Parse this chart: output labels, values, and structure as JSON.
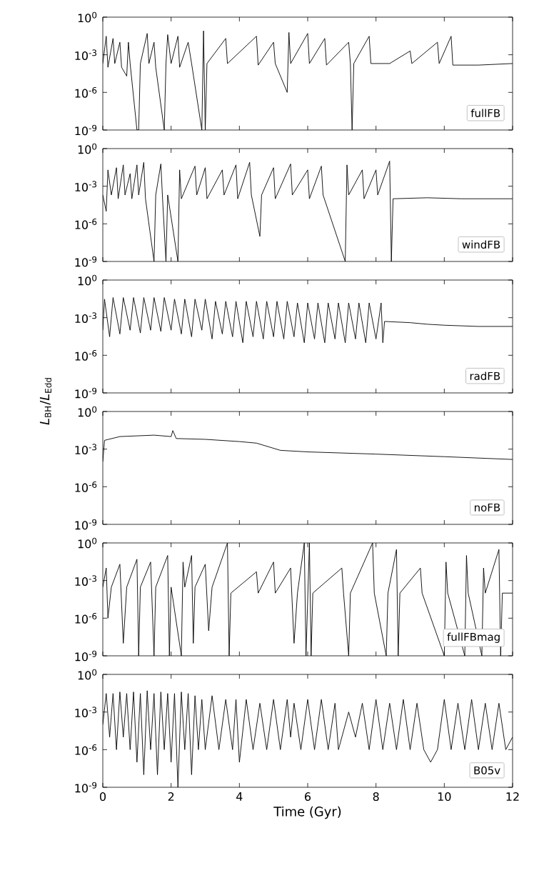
{
  "chart_data": [
    {
      "type": "line",
      "xlim": [
        0,
        12
      ],
      "xticks": [
        0,
        2,
        4,
        6,
        8,
        10,
        12
      ],
      "ylim": [
        1e-09,
        1
      ],
      "log": true,
      "tick_labels": "y",
      "yticks": [
        {
          "value": 1e-09,
          "label": "10$^{-9}$"
        },
        {
          "value": 1e-06,
          "label": "10$^{-6}$"
        },
        {
          "value": 0.001,
          "label": "10$^{-3}$"
        },
        {
          "value": 1,
          "label": "10$^{0}$"
        }
      ],
      "annotations": [
        "fullFB"
      ],
      "x": [
        0,
        0.1,
        0.15,
        0.3,
        0.35,
        0.5,
        0.55,
        0.7,
        0.75,
        0.8,
        1.0,
        1.05,
        1.1,
        1.3,
        1.35,
        1.5,
        1.55,
        1.8,
        1.85,
        1.9,
        2.0,
        2.2,
        2.25,
        2.5,
        2.6,
        2.9,
        2.95,
        3.0,
        3.05,
        3.6,
        3.65,
        4.5,
        4.55,
        5.0,
        5.05,
        5.4,
        5.45,
        5.5,
        6.0,
        6.05,
        6.5,
        6.55,
        7.2,
        7.25,
        7.3,
        7.35,
        7.8,
        7.85,
        8.4,
        9.0,
        9.05,
        9.8,
        9.85,
        10.2,
        10.25,
        11.0,
        12
      ],
      "series": [
        {
          "color": "#000000",
          "values": [
            0.0002,
            0.03,
            0.0001,
            0.02,
            0.0002,
            0.01,
            0.0001,
            2e-05,
            0.01,
            0.0002,
            1e-09,
            1e-09,
            0.0002,
            0.05,
            0.0002,
            0.01,
            0.0001,
            1e-09,
            0.0002,
            0.04,
            0.0002,
            0.03,
            0.0001,
            0.01,
            0.0002,
            1e-09,
            0.08,
            1e-09,
            0.0002,
            0.02,
            0.0002,
            0.03,
            0.00015,
            0.01,
            0.0002,
            1e-06,
            0.06,
            0.0002,
            0.05,
            0.0002,
            0.02,
            0.00015,
            0.01,
            0.0002,
            1e-09,
            0.0002,
            0.03,
            0.0002,
            0.0002,
            0.002,
            0.0002,
            0.01,
            0.0002,
            0.03,
            0.00015,
            0.00015,
            0.0002
          ]
        }
      ]
    },
    {
      "type": "line",
      "xlim": [
        0,
        12
      ],
      "xticks": [
        0,
        2,
        4,
        6,
        8,
        10,
        12
      ],
      "ylim": [
        1e-09,
        1
      ],
      "log": true,
      "tick_labels": "y",
      "yticks": [
        {
          "value": 1e-09,
          "label": "10$^{-9}$"
        },
        {
          "value": 1e-06,
          "label": "10$^{-6}$"
        },
        {
          "value": 0.001,
          "label": "10$^{-3}$"
        },
        {
          "value": 1,
          "label": "10$^{0}$"
        }
      ],
      "annotations": [
        "windFB"
      ],
      "x": [
        0,
        0.1,
        0.15,
        0.25,
        0.4,
        0.45,
        0.6,
        0.65,
        0.8,
        0.85,
        1.0,
        1.05,
        1.2,
        1.25,
        1.5,
        1.55,
        1.7,
        1.75,
        1.85,
        1.9,
        2.2,
        2.25,
        2.3,
        2.7,
        2.75,
        3.0,
        3.05,
        3.5,
        3.55,
        3.9,
        3.95,
        4.3,
        4.35,
        4.6,
        4.65,
        5.0,
        5.05,
        5.5,
        5.55,
        6.0,
        6.05,
        6.4,
        6.45,
        7.1,
        7.15,
        7.2,
        7.6,
        7.65,
        8.0,
        8.05,
        8.4,
        8.45,
        8.5,
        9.5,
        10.5,
        12
      ],
      "series": [
        {
          "color": "#000000",
          "values": [
            0.0002,
            1e-05,
            0.02,
            0.0002,
            0.03,
            0.0001,
            0.05,
            0.0002,
            0.01,
            0.0001,
            0.05,
            0.0002,
            0.08,
            0.0001,
            1e-09,
            0.0002,
            0.06,
            0.0001,
            1e-09,
            0.0002,
            1e-09,
            0.02,
            0.0001,
            0.04,
            0.0002,
            0.03,
            0.0001,
            0.02,
            0.0002,
            0.05,
            0.0001,
            0.08,
            0.0002,
            1e-07,
            0.0002,
            0.03,
            0.0001,
            0.06,
            0.0002,
            0.02,
            0.0001,
            0.04,
            0.0002,
            1e-09,
            0.05,
            0.0002,
            0.02,
            0.0001,
            0.02,
            0.0002,
            0.1,
            1e-09,
            0.0001,
            0.00012,
            0.0001,
            0.0001
          ]
        }
      ]
    },
    {
      "type": "line",
      "xlim": [
        0,
        12
      ],
      "xticks": [
        0,
        2,
        4,
        6,
        8,
        10,
        12
      ],
      "ylim": [
        1e-09,
        1
      ],
      "log": true,
      "tick_labels": "y",
      "yticks": [
        {
          "value": 1e-09,
          "label": "10$^{-9}$"
        },
        {
          "value": 1e-06,
          "label": "10$^{-6}$"
        },
        {
          "value": 0.001,
          "label": "10$^{-3}$"
        },
        {
          "value": 1,
          "label": "10$^{0}$"
        }
      ],
      "ylabel": "*L*$_{BH}$/*L*$_{Edd}$",
      "annotations": [
        "radFB"
      ],
      "x": [
        0,
        0.05,
        0.2,
        0.3,
        0.5,
        0.6,
        0.8,
        0.9,
        1.1,
        1.2,
        1.4,
        1.5,
        1.7,
        1.8,
        2.0,
        2.1,
        2.3,
        2.4,
        2.6,
        2.7,
        2.9,
        3.0,
        3.2,
        3.3,
        3.5,
        3.6,
        3.8,
        3.9,
        4.1,
        4.2,
        4.4,
        4.5,
        4.7,
        4.8,
        5.0,
        5.1,
        5.3,
        5.4,
        5.6,
        5.7,
        5.9,
        6.0,
        6.2,
        6.3,
        6.5,
        6.6,
        6.8,
        6.9,
        7.1,
        7.2,
        7.4,
        7.5,
        7.7,
        7.8,
        8.0,
        8.15,
        8.2,
        8.25,
        9.0,
        9.5,
        10.0,
        11.0,
        12
      ],
      "series": [
        {
          "color": "#000000",
          "values": [
            0.0001,
            0.03,
            3e-05,
            0.04,
            5e-05,
            0.04,
            0.0001,
            0.04,
            6e-05,
            0.04,
            0.0001,
            0.04,
            8e-05,
            0.04,
            0.0001,
            0.03,
            5e-05,
            0.03,
            3e-05,
            0.03,
            0.0001,
            0.03,
            2e-05,
            0.02,
            5e-05,
            0.02,
            3e-05,
            0.02,
            1e-05,
            0.02,
            3e-05,
            0.02,
            2e-05,
            0.02,
            3e-05,
            0.02,
            2e-05,
            0.02,
            3e-05,
            0.015,
            1e-05,
            0.015,
            2e-05,
            0.015,
            1e-05,
            0.015,
            2e-05,
            0.015,
            1e-05,
            0.015,
            2e-05,
            0.015,
            1e-05,
            0.015,
            2e-05,
            0.015,
            1e-05,
            0.0005,
            0.0004,
            0.0003,
            0.00025,
            0.0002,
            0.0002
          ]
        }
      ]
    },
    {
      "type": "line",
      "xlim": [
        0,
        12
      ],
      "xticks": [
        0,
        2,
        4,
        6,
        8,
        10,
        12
      ],
      "ylim": [
        1e-09,
        1
      ],
      "log": true,
      "tick_labels": "y",
      "yticks": [
        {
          "value": 1e-09,
          "label": "10$^{-9}$"
        },
        {
          "value": 1e-06,
          "label": "10$^{-6}$"
        },
        {
          "value": 0.001,
          "label": "10$^{-3}$"
        },
        {
          "value": 1,
          "label": "10$^{0}$"
        }
      ],
      "annotations": [
        "noFB"
      ],
      "x": [
        0,
        0.05,
        0.5,
        1.5,
        2.0,
        2.05,
        2.15,
        3,
        4,
        4.5,
        5.2,
        6,
        8,
        10,
        12
      ],
      "series": [
        {
          "color": "#000000",
          "values": [
            0.0001,
            0.005,
            0.01,
            0.013,
            0.01,
            0.03,
            0.007,
            0.006,
            0.004,
            0.003,
            0.0008,
            0.0006,
            0.0004,
            0.00025,
            0.00015
          ]
        }
      ]
    },
    {
      "type": "line",
      "xlim": [
        0,
        12
      ],
      "xticks": [
        0,
        2,
        4,
        6,
        8,
        10,
        12
      ],
      "ylim": [
        1e-09,
        1
      ],
      "log": true,
      "tick_labels": "y",
      "yticks": [
        {
          "value": 1e-09,
          "label": "10$^{-9}$"
        },
        {
          "value": 1e-06,
          "label": "10$^{-6}$"
        },
        {
          "value": 0.001,
          "label": "10$^{-3}$"
        },
        {
          "value": 1,
          "label": "10$^{0}$"
        }
      ],
      "annotations": [
        "fullFBmag"
      ],
      "x": [
        0,
        0.1,
        0.15,
        0.25,
        0.5,
        0.6,
        0.7,
        1.0,
        1.05,
        1.1,
        1.4,
        1.5,
        1.55,
        1.9,
        1.95,
        2.0,
        2.3,
        2.35,
        2.4,
        2.6,
        2.65,
        2.7,
        3.0,
        3.1,
        3.2,
        3.65,
        3.7,
        3.75,
        4.5,
        4.55,
        5.0,
        5.05,
        5.5,
        5.6,
        5.7,
        5.9,
        5.95,
        6.05,
        6.1,
        6.15,
        7.0,
        7.05,
        7.2,
        7.25,
        7.9,
        7.95,
        8.3,
        8.35,
        8.6,
        8.65,
        8.7,
        9.3,
        9.35,
        10.0,
        10.05,
        10.1,
        10.6,
        10.65,
        10.7,
        11.1,
        11.15,
        11.2,
        11.6,
        11.65,
        11.7,
        12
      ],
      "series": [
        {
          "color": "#000000",
          "values": [
            0.0003,
            0.01,
            1e-06,
            0.0003,
            0.02,
            1e-08,
            0.0003,
            0.05,
            1e-09,
            0.0003,
            0.03,
            1e-09,
            0.0003,
            0.1,
            1e-09,
            0.0003,
            1e-09,
            0.03,
            0.0003,
            0.1,
            1e-08,
            0.0003,
            0.02,
            1e-07,
            0.0003,
            1,
            1e-09,
            0.0001,
            0.005,
            0.0001,
            0.03,
            0.0001,
            0.01,
            1e-08,
            0.0001,
            1,
            1e-09,
            1,
            1e-09,
            0.0001,
            0.01,
            0.0001,
            1e-09,
            0.0001,
            1,
            0.0001,
            1e-09,
            0.0001,
            0.3,
            1e-09,
            0.0001,
            0.01,
            0.0001,
            1e-09,
            0.03,
            0.0001,
            1e-09,
            0.1,
            0.0001,
            1e-09,
            0.01,
            0.0001,
            0.3,
            1e-09,
            0.0001,
            0.0001
          ]
        }
      ]
    },
    {
      "type": "line",
      "xlim": [
        0,
        12
      ],
      "xticks": [
        0,
        2,
        4,
        6,
        8,
        10,
        12
      ],
      "ylim": [
        1e-09,
        1
      ],
      "log": true,
      "yticks": [
        {
          "value": 1e-09,
          "label": "10$^{-9}$"
        },
        {
          "value": 1e-06,
          "label": "10$^{-6}$"
        },
        {
          "value": 0.001,
          "label": "10$^{-3}$"
        },
        {
          "value": 1,
          "label": "10$^{0}$"
        }
      ],
      "xlabel": "Time (Gyr)",
      "annotations": [
        "B05v"
      ],
      "x": [
        0,
        0.1,
        0.2,
        0.3,
        0.4,
        0.5,
        0.6,
        0.7,
        0.8,
        0.9,
        1.0,
        1.1,
        1.2,
        1.3,
        1.4,
        1.5,
        1.6,
        1.7,
        1.8,
        1.9,
        2.0,
        2.1,
        2.2,
        2.3,
        2.4,
        2.5,
        2.6,
        2.7,
        2.8,
        2.9,
        3.0,
        3.2,
        3.4,
        3.6,
        3.8,
        3.9,
        4.0,
        4.2,
        4.4,
        4.6,
        4.8,
        5.0,
        5.2,
        5.4,
        5.5,
        5.6,
        5.8,
        6.0,
        6.2,
        6.4,
        6.6,
        6.8,
        6.9,
        7.2,
        7.4,
        7.6,
        7.8,
        8.0,
        8.2,
        8.4,
        8.6,
        8.8,
        9.0,
        9.2,
        9.4,
        9.6,
        9.8,
        10.0,
        10.2,
        10.4,
        10.6,
        10.8,
        11.0,
        11.2,
        11.4,
        11.6,
        11.8,
        12
      ],
      "series": [
        {
          "color": "#000000",
          "values": [
            0.0001,
            0.03,
            1e-05,
            0.03,
            1e-06,
            0.04,
            1e-05,
            0.03,
            1e-06,
            0.04,
            1e-07,
            0.03,
            1e-08,
            0.05,
            1e-06,
            0.03,
            1e-08,
            0.04,
            1e-06,
            0.03,
            1e-07,
            0.03,
            1e-09,
            0.04,
            1e-06,
            0.03,
            1e-08,
            0.02,
            1e-06,
            0.01,
            1e-06,
            0.02,
            1e-06,
            0.01,
            1e-06,
            0.01,
            1e-07,
            0.01,
            1e-06,
            0.005,
            1e-06,
            0.01,
            1e-06,
            0.01,
            1e-05,
            0.005,
            1e-06,
            0.01,
            1e-06,
            0.01,
            1e-06,
            0.005,
            1e-06,
            0.001,
            1e-05,
            0.005,
            1e-06,
            0.01,
            1e-06,
            0.005,
            1e-06,
            0.01,
            1e-06,
            0.005,
            1e-06,
            1e-07,
            1e-06,
            0.01,
            1e-06,
            0.005,
            1e-06,
            0.01,
            1e-06,
            0.005,
            1e-06,
            0.005,
            1e-06,
            1e-05
          ]
        }
      ]
    }
  ]
}
